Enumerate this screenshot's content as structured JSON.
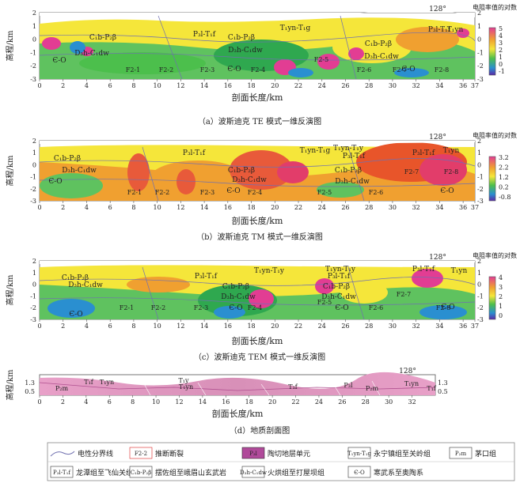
{
  "panels": [
    {
      "id": "a",
      "caption": "（a）波斯迪克 TE 模式一维反演图",
      "ylabel": "高程/km",
      "xlabel": "剖面长度/km",
      "colorbar_title": "电阻率值的对数",
      "colorbar_ticks": [
        "5",
        "4",
        "3",
        "2",
        "1",
        "0",
        "-1"
      ],
      "bearing": "128°",
      "labels": [
        "T₁yn-T₁g",
        "P₃l-T₁f",
        "C₁b-P₂β",
        "D₃h-C₁dw",
        "Є-O",
        "C₁b-P₂β",
        "D₃h-C₁dw",
        "P₃l-T₁f",
        "T₁yn",
        "C₁b-P₂β",
        "D₃h-C₁dw",
        "Є-O",
        "Є-O",
        "F2-1",
        "F2-2",
        "F2-3",
        "F2-4",
        "F2-5",
        "F2-6",
        "F2-7",
        "F2-8"
      ]
    },
    {
      "id": "b",
      "caption": "（b）波斯迪克 TM 模式一维反演图",
      "ylabel": "高程/km",
      "xlabel": "剖面长度/km",
      "colorbar_title": "电阻率值的对数",
      "colorbar_ticks": [
        "3.2",
        "2.2",
        "1.2",
        "0.2",
        "-0.8"
      ],
      "bearing": "128°",
      "labels": [
        "C₁b-P₂β",
        "D₃h-C₁dw",
        "Є-O",
        "P₃l-T₁f",
        "T₁yn-T₁g",
        "C₁b-P₂β",
        "D₃h-C₁dw",
        "Є-O",
        "T₁yn-T₁y",
        "P₃l-T₁f",
        "C₁b-P₂β",
        "D₃h-C₁dw",
        "P₃l-T₁f",
        "T₁yn",
        "Є-O",
        "F2-1",
        "F2-2",
        "F2-3",
        "F2-4",
        "F2-5",
        "F2-6",
        "F2-7",
        "F2-8"
      ]
    },
    {
      "id": "c",
      "caption": "（c）波斯迪克 TEM 模式一维反演图",
      "ylabel": "高程/km",
      "xlabel": "剖面长度/km",
      "colorbar_title": "电阻率值的对数",
      "colorbar_ticks": [
        "4",
        "3",
        "2",
        "1",
        "0"
      ],
      "bearing": "128°",
      "labels": [
        "C₁b-P₂β",
        "D₃h-C₁dw",
        "Є-O",
        "T₁yn-T₁y",
        "P₃l-T₁f",
        "C₁b-P₂β",
        "D₃h-C₁dw",
        "Є-O",
        "T₁yn-T₁y",
        "P₃l-T₁f",
        "C₁b-P₂β",
        "D₃h-C₁dw",
        "Є-O",
        "P₃l-T₁f",
        "T₁yn",
        "Є-O",
        "F2-1",
        "F2-2",
        "F2-3",
        "F2-4",
        "F2-5",
        "F2-6",
        "F2-7",
        "F2-8"
      ]
    },
    {
      "id": "d",
      "caption": "（d）地质剖面图",
      "ylabel": "高程/km",
      "xlabel": "剖面长度/km",
      "bearing": "128°",
      "labels": [
        "P₂m",
        "T₁f",
        "T₁yn",
        "T₁y",
        "T₁yn",
        "T₁f",
        "P₃l",
        "P₂m",
        "T₁yn",
        "T₁f"
      ]
    }
  ],
  "axis": {
    "x_ticks": [
      "0",
      "2",
      "4",
      "6",
      "8",
      "10",
      "12",
      "14",
      "16",
      "18",
      "20",
      "22",
      "24",
      "26",
      "28",
      "30",
      "32",
      "34",
      "36",
      "37"
    ],
    "y_ticks": [
      "2",
      "1",
      "0",
      "-1",
      "-2",
      "-3"
    ],
    "right_y_ticks": [
      "2",
      "1",
      "0",
      "-1",
      "-2",
      "-3"
    ],
    "d_y_ticks": [
      "1.3",
      "0.5"
    ],
    "d_x_ticks": [
      "0",
      "2",
      "4",
      "6",
      "8",
      "10",
      "12",
      "14",
      "16",
      "18",
      "20",
      "22",
      "24",
      "26",
      "28",
      "30",
      "32"
    ]
  },
  "legend": [
    {
      "symbol": "line",
      "label": "电性分界线"
    },
    {
      "symbol": "F2-2",
      "label": "推断断裂"
    },
    {
      "symbol": "P₃l",
      "label": "陶切地层单元"
    },
    {
      "symbol": "T₁yn-T₁g",
      "label": "永宁镇组至关岭组"
    },
    {
      "symbol": "P₂m",
      "label": "茅口组"
    },
    {
      "symbol": "P₃l-T₁f",
      "label": "龙潭组至飞仙关组"
    },
    {
      "symbol": "C₁b-P₂β",
      "label": "摆佐组至峨眉山玄武岩"
    },
    {
      "symbol": "D₃h-C₁dw",
      "label": "火烘组至打屋坝组"
    },
    {
      "symbol": "Є-O",
      "label": "寒武系至奥陶系"
    }
  ],
  "colors": {
    "high": "#e0307a",
    "mid_high": "#f0a030",
    "mid": "#f5e63a",
    "mid_low": "#4cbf4c",
    "low": "#2a8fd0",
    "lowest": "#5a2aa8",
    "fault": "#d22",
    "boundary": "#7070b0"
  }
}
